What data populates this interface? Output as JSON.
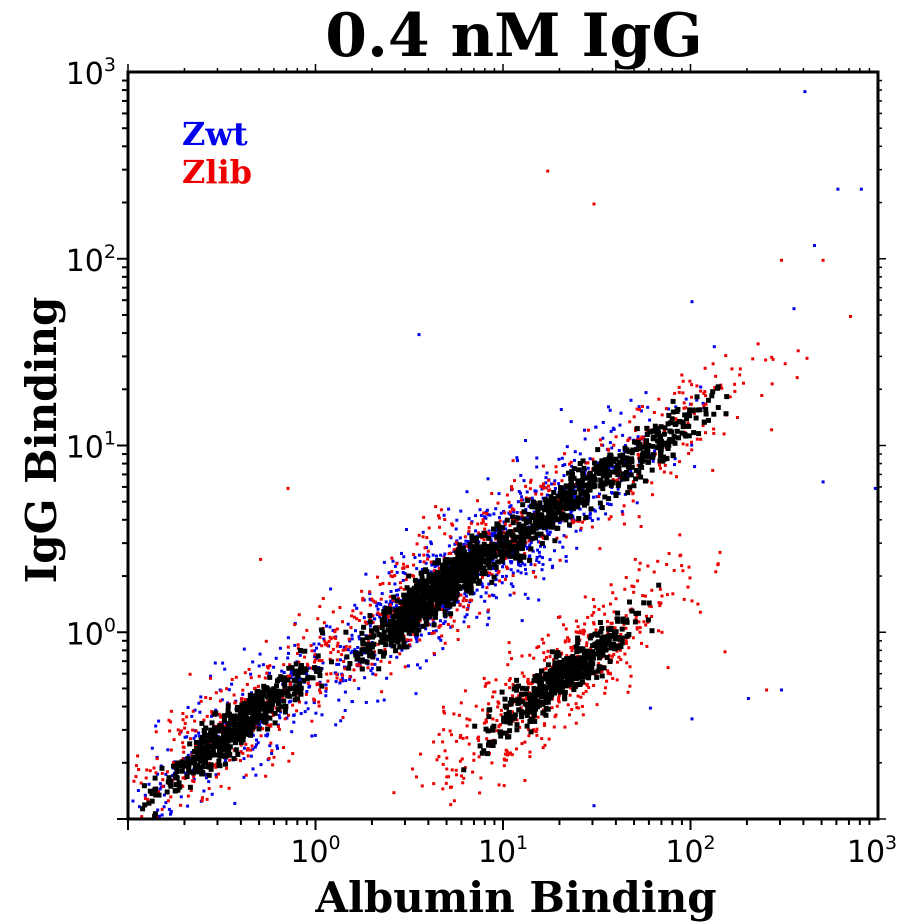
{
  "chart_data": {
    "type": "scatter",
    "title": "0.4 nM IgG",
    "xlabel": "Albumin Binding",
    "ylabel": "IgG Binding",
    "x_scale": "log",
    "y_scale": "log",
    "xlim": [
      0.1,
      1000
    ],
    "ylim": [
      0.1,
      1000
    ],
    "x_ticks": [
      {
        "value": 1,
        "base": "10",
        "exp": "0"
      },
      {
        "value": 10,
        "base": "10",
        "exp": "1"
      },
      {
        "value": 100,
        "base": "10",
        "exp": "2"
      },
      {
        "value": 1000,
        "base": "10",
        "exp": "3"
      }
    ],
    "y_ticks": [
      {
        "value": 1,
        "base": "10",
        "exp": "0"
      },
      {
        "value": 10,
        "base": "10",
        "exp": "1"
      },
      {
        "value": 100,
        "base": "10",
        "exp": "2"
      },
      {
        "value": 1000,
        "base": "10",
        "exp": "3"
      }
    ],
    "legend_position": "top-left",
    "series": [
      {
        "name": "Zwt",
        "color": "#0000ee",
        "clusters": [
          {
            "x_center": 0.35,
            "y_center": 0.3,
            "points": 260
          },
          {
            "x_center": 4,
            "y_center": 1.6,
            "points": 520
          },
          {
            "x_center": 20,
            "y_center": 5,
            "points": 380
          }
        ],
        "outliers": [
          [
            400,
            800
          ],
          [
            600,
            240
          ],
          [
            800,
            240
          ],
          [
            450,
            120
          ],
          [
            350,
            55
          ],
          [
            100,
            60
          ],
          [
            3.5,
            40
          ],
          [
            500,
            6.5
          ],
          [
            950,
            6
          ],
          [
            200,
            0.45
          ],
          [
            300,
            0.5
          ],
          [
            100,
            0.35
          ],
          [
            60,
            0.4
          ],
          [
            30,
            0.12
          ]
        ]
      },
      {
        "name": "Zlib",
        "color": "#ee0000",
        "clusters": [
          {
            "x_center": 0.4,
            "y_center": 0.35,
            "points": 320
          },
          {
            "x_center": 5,
            "y_center": 2,
            "points": 480
          },
          {
            "x_center": 20,
            "y_center": 0.6,
            "points": 520
          },
          {
            "x_center": 60,
            "y_center": 10,
            "points": 200
          }
        ],
        "outliers": [
          [
            17,
            300
          ],
          [
            30,
            200
          ],
          [
            300,
            100
          ],
          [
            500,
            100
          ],
          [
            700,
            50
          ],
          [
            0.7,
            6
          ],
          [
            0.5,
            2.5
          ],
          [
            100,
            1.5
          ],
          [
            150,
            0.8
          ],
          [
            250,
            0.5
          ]
        ]
      }
    ],
    "overlap_color": "#000000"
  }
}
